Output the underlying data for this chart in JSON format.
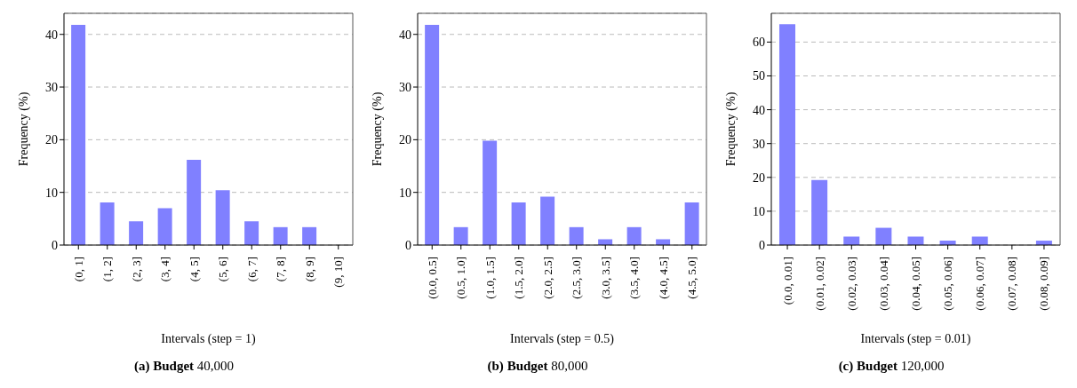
{
  "chart_data": [
    {
      "type": "bar",
      "title": "(a) Budget 40,000",
      "xlabel": "Intervals (step = 1)",
      "ylabel": "Frequency (%)",
      "categories": [
        "(0, 1]",
        "(1, 2]",
        "(2, 3]",
        "(3, 4]",
        "(4, 5]",
        "(5, 6]",
        "(6, 7]",
        "(7, 8]",
        "(8, 9]",
        "(9, 10]"
      ],
      "values": [
        41.8,
        8.1,
        4.5,
        7.0,
        16.2,
        10.4,
        4.5,
        3.4,
        3.4,
        0
      ],
      "color": "#8080ff",
      "ylim": [
        0,
        44
      ],
      "yticks": [
        0,
        10,
        20,
        30,
        40
      ],
      "grid": "y"
    },
    {
      "type": "bar",
      "title": "(b) Budget 80,000",
      "xlabel": "Intervals (step = 0.5)",
      "ylabel": "Frequency (%)",
      "categories": [
        "(0.0, 0.5]",
        "(0.5, 1.0]",
        "(1.0, 1.5]",
        "(1.5, 2.0]",
        "(2.0, 2.5]",
        "(2.5, 3.0]",
        "(3.0, 3.5]",
        "(3.5, 4.0]",
        "(4.0, 4.5]",
        "(4.5, 5.0]"
      ],
      "values": [
        41.8,
        3.4,
        19.8,
        8.1,
        9.2,
        3.4,
        1.1,
        3.4,
        1.1,
        8.1
      ],
      "color": "#8080ff",
      "ylim": [
        0,
        44
      ],
      "yticks": [
        0,
        10,
        20,
        30,
        40
      ],
      "grid": "y"
    },
    {
      "type": "bar",
      "title": "(c) Budget 120,000",
      "xlabel": "Intervals (step = 0.01)",
      "ylabel": "Frequency (%)",
      "categories": [
        "(0.0, 0.01]",
        "(0.01, 0.02]",
        "(0.02, 0.03]",
        "(0.03, 0.04]",
        "(0.04, 0.05]",
        "(0.05, 0.06]",
        "(0.06, 0.07]",
        "(0.07, 0.08]",
        "(0.08, 0.09]"
      ],
      "values": [
        65.3,
        19.2,
        2.5,
        5.1,
        2.5,
        1.3,
        2.5,
        0,
        1.3
      ],
      "color": "#8080ff",
      "ylim": [
        0,
        68.5
      ],
      "yticks": [
        0,
        10,
        20,
        30,
        40,
        50,
        60
      ],
      "grid": "y"
    }
  ]
}
